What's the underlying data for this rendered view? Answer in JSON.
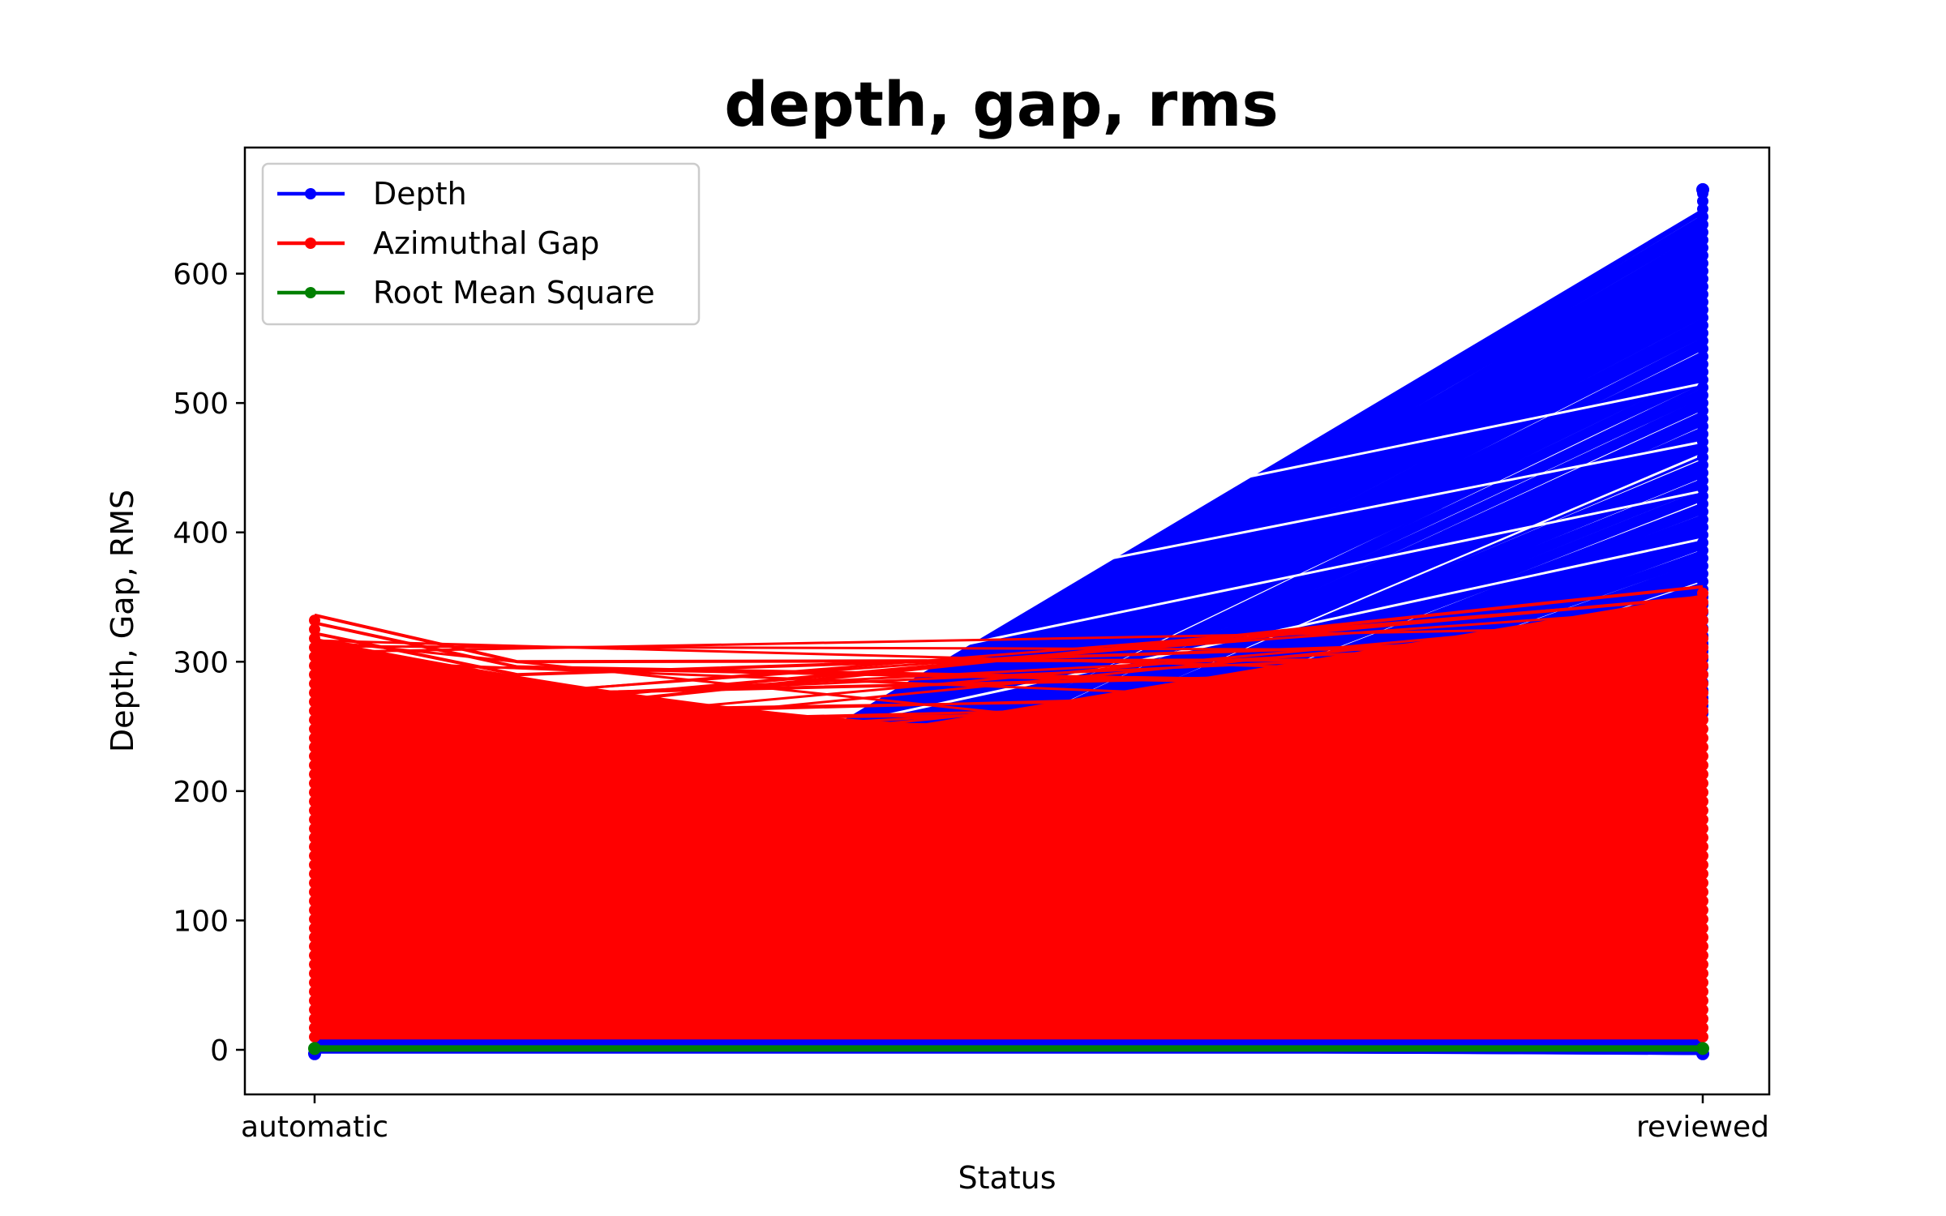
{
  "chart_data": {
    "type": "line",
    "title": "depth, gap, rms",
    "xlabel": "Status",
    "ylabel": "Depth, Gap, RMS",
    "categories": [
      "automatic",
      "reviewed"
    ],
    "ylim": [
      -36,
      700
    ],
    "yticks": [
      0,
      100,
      200,
      300,
      400,
      500,
      600
    ],
    "grid": false,
    "legend_position": "upper-left",
    "series": [
      {
        "name": "Depth",
        "color": "#0000ff",
        "range_automatic": [
          -3,
          12
        ],
        "range_reviewed": [
          -3,
          665
        ],
        "shown_as": "many overlapping line segments with dot markers"
      },
      {
        "name": "Azimuthal Gap",
        "color": "#ff0000",
        "range_automatic": [
          8,
          336
        ],
        "range_reviewed": [
          8,
          358
        ],
        "shown_as": "many overlapping line segments with dot markers"
      },
      {
        "name": "Root Mean Square",
        "color": "#008000",
        "range_automatic": [
          0,
          2
        ],
        "range_reviewed": [
          0,
          2
        ],
        "shown_as": "many overlapping line segments with dot markers"
      }
    ]
  }
}
